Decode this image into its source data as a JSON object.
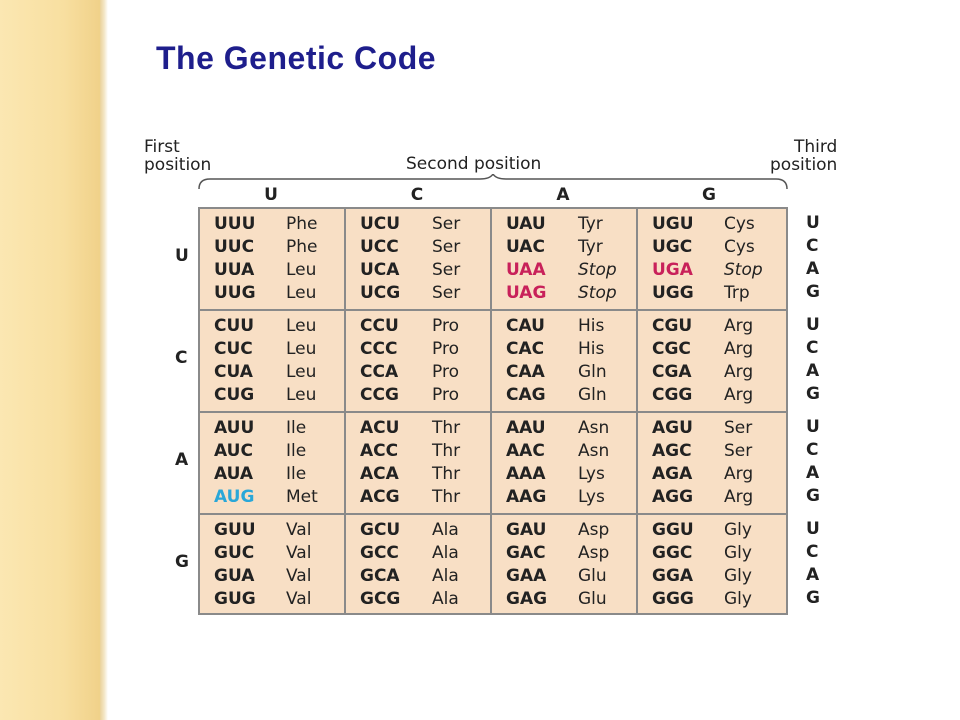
{
  "title": "The Genetic Code",
  "headers": {
    "first_position": [
      "First",
      "position"
    ],
    "second_position": "Second position",
    "third_position": [
      "Third",
      "position"
    ]
  },
  "bases": [
    "U",
    "C",
    "A",
    "G"
  ],
  "colors": {
    "title": "#1e1e8c",
    "stop": "#c8215a",
    "start": "#2aa7d8",
    "cell_background": "#f8dfc5",
    "side_band": "#f8dfa0"
  },
  "table": [
    [
      [
        [
          "UUU",
          "Phe"
        ],
        [
          "UUC",
          "Phe"
        ],
        [
          "UUA",
          "Leu"
        ],
        [
          "UUG",
          "Leu"
        ]
      ],
      [
        [
          "UCU",
          "Ser"
        ],
        [
          "UCC",
          "Ser"
        ],
        [
          "UCA",
          "Ser"
        ],
        [
          "UCG",
          "Ser"
        ]
      ],
      [
        [
          "UAU",
          "Tyr"
        ],
        [
          "UAC",
          "Tyr"
        ],
        [
          "UAA",
          "Stop"
        ],
        [
          "UAG",
          "Stop"
        ]
      ],
      [
        [
          "UGU",
          "Cys"
        ],
        [
          "UGC",
          "Cys"
        ],
        [
          "UGA",
          "Stop"
        ],
        [
          "UGG",
          "Trp"
        ]
      ]
    ],
    [
      [
        [
          "CUU",
          "Leu"
        ],
        [
          "CUC",
          "Leu"
        ],
        [
          "CUA",
          "Leu"
        ],
        [
          "CUG",
          "Leu"
        ]
      ],
      [
        [
          "CCU",
          "Pro"
        ],
        [
          "CCC",
          "Pro"
        ],
        [
          "CCA",
          "Pro"
        ],
        [
          "CCG",
          "Pro"
        ]
      ],
      [
        [
          "CAU",
          "His"
        ],
        [
          "CAC",
          "His"
        ],
        [
          "CAA",
          "Gln"
        ],
        [
          "CAG",
          "Gln"
        ]
      ],
      [
        [
          "CGU",
          "Arg"
        ],
        [
          "CGC",
          "Arg"
        ],
        [
          "CGA",
          "Arg"
        ],
        [
          "CGG",
          "Arg"
        ]
      ]
    ],
    [
      [
        [
          "AUU",
          "Ile"
        ],
        [
          "AUC",
          "Ile"
        ],
        [
          "AUA",
          "Ile"
        ],
        [
          "AUG",
          "Met"
        ]
      ],
      [
        [
          "ACU",
          "Thr"
        ],
        [
          "ACC",
          "Thr"
        ],
        [
          "ACA",
          "Thr"
        ],
        [
          "ACG",
          "Thr"
        ]
      ],
      [
        [
          "AAU",
          "Asn"
        ],
        [
          "AAC",
          "Asn"
        ],
        [
          "AAA",
          "Lys"
        ],
        [
          "AAG",
          "Lys"
        ]
      ],
      [
        [
          "AGU",
          "Ser"
        ],
        [
          "AGC",
          "Ser"
        ],
        [
          "AGA",
          "Arg"
        ],
        [
          "AGG",
          "Arg"
        ]
      ]
    ],
    [
      [
        [
          "GUU",
          "Val"
        ],
        [
          "GUC",
          "Val"
        ],
        [
          "GUA",
          "Val"
        ],
        [
          "GUG",
          "Val"
        ]
      ],
      [
        [
          "GCU",
          "Ala"
        ],
        [
          "GCC",
          "Ala"
        ],
        [
          "GCA",
          "Ala"
        ],
        [
          "GCG",
          "Ala"
        ]
      ],
      [
        [
          "GAU",
          "Asp"
        ],
        [
          "GAC",
          "Asp"
        ],
        [
          "GAA",
          "Glu"
        ],
        [
          "GAG",
          "Glu"
        ]
      ],
      [
        [
          "GGU",
          "Gly"
        ],
        [
          "GGC",
          "Gly"
        ],
        [
          "GGA",
          "Gly"
        ],
        [
          "GGG",
          "Gly"
        ]
      ]
    ]
  ],
  "stop_codons": [
    "UAA",
    "UAG",
    "UGA"
  ],
  "start_codons": [
    "AUG"
  ]
}
